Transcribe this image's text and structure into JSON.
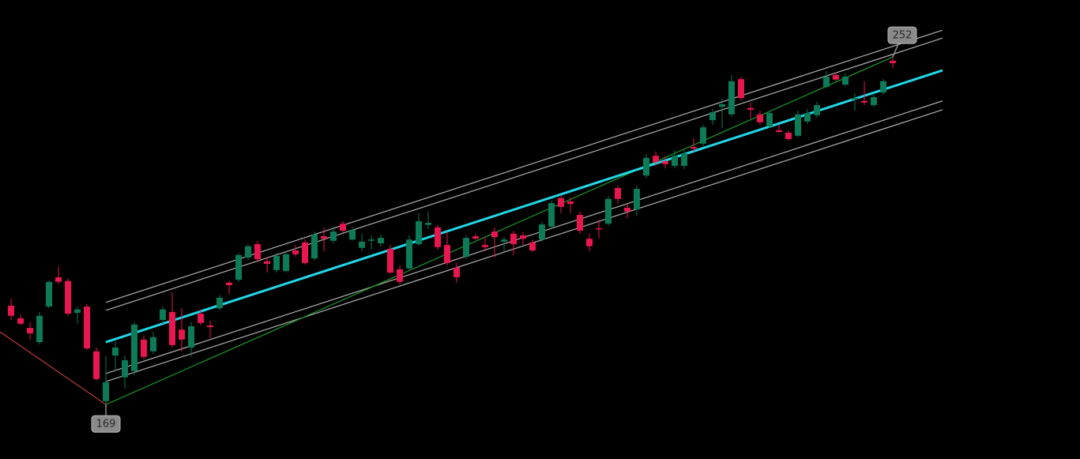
{
  "chart_data": {
    "type": "candlestick",
    "xlim": [
      -1.17,
      112.75
    ],
    "ylim": [
      156.0,
      265.6
    ],
    "up_color": "#0d7a58",
    "down_color": "#e8174f",
    "open": [
      192.6,
      189.6,
      187.3,
      183.9,
      192.4,
      199.4,
      198.5,
      190.9,
      192.4,
      181.7,
      169.8,
      180.7,
      175.5,
      177.0,
      184.5,
      181.7,
      189.2,
      191.1,
      186.9,
      182.6,
      190.7,
      187.9,
      192.0,
      198.1,
      198.8,
      204.1,
      207.3,
      203.2,
      201.1,
      200.9,
      205.8,
      207.7,
      203.9,
      209.2,
      208.1,
      212.2,
      208.4,
      206.4,
      208.1,
      207.5,
      206.2,
      201.3,
      201.5,
      207.3,
      211.9,
      211.3,
      207.1,
      201.7,
      204.3,
      209.2,
      207.1,
      210.3,
      207.9,
      209.8,
      209.4,
      207.7,
      208.4,
      211.5,
      218.3,
      217.5,
      214.3,
      208.6,
      211.1,
      212.2,
      220.7,
      216.0,
      215.6,
      223.7,
      228.4,
      227.1,
      226.0,
      226.0,
      230.5,
      231.3,
      236.9,
      240.1,
      238.3,
      246.7,
      239.8,
      238.3,
      235.4,
      234.5,
      233.9,
      233.2,
      236.6,
      238.1,
      244.9,
      247.7,
      245.4,
      241.8,
      241.5,
      240.5,
      243.5,
      251.1
    ],
    "high": [
      194.3,
      190.5,
      188.7,
      191.1,
      198.6,
      202.0,
      199.2,
      192.4,
      193.0,
      182.6,
      180.7,
      184.1,
      180.7,
      188.7,
      185.4,
      186.4,
      192.4,
      195.8,
      192.0,
      188.7,
      191.7,
      189.0,
      195.2,
      198.5,
      205.2,
      207.3,
      208.1,
      204.3,
      205.2,
      205.6,
      207.1,
      208.4,
      210.3,
      211.3,
      211.5,
      212.8,
      211.3,
      209.8,
      209.4,
      209.6,
      207.1,
      202.2,
      209.4,
      214.7,
      215.1,
      211.9,
      210.3,
      202.8,
      209.4,
      209.8,
      209.0,
      211.3,
      209.0,
      210.5,
      210.2,
      208.4,
      212.6,
      217.7,
      219.0,
      218.4,
      215.1,
      209.8,
      213.2,
      218.8,
      221.3,
      216.9,
      221.3,
      228.8,
      229.4,
      228.3,
      229.8,
      229.8,
      232.6,
      235.8,
      239.6,
      242.0,
      247.7,
      247.3,
      241.1,
      239.2,
      239.2,
      235.8,
      234.5,
      239.2,
      239.6,
      241.3,
      248.6,
      248.3,
      248.1,
      243.3,
      246.2,
      243.0,
      246.7,
      252.0
    ],
    "low": [
      189.2,
      187.9,
      184.5,
      183.4,
      192.0,
      197.7,
      190.2,
      188.3,
      182.0,
      174.7,
      169.0,
      177.0,
      172.8,
      176.0,
      179.8,
      181.1,
      188.3,
      182.6,
      181.7,
      180.4,
      187.9,
      184.9,
      191.5,
      195.4,
      198.3,
      203.4,
      203.0,
      200.5,
      200.5,
      200.5,
      204.3,
      202.4,
      203.4,
      205.6,
      207.5,
      210.0,
      208.1,
      205.6,
      206.0,
      206.8,
      200.2,
      197.7,
      201.1,
      206.9,
      210.9,
      206.0,
      202.2,
      198.1,
      203.7,
      208.3,
      205.6,
      204.1,
      205.6,
      204.7,
      207.1,
      205.4,
      207.9,
      210.9,
      214.7,
      214.7,
      209.8,
      205.6,
      208.6,
      211.7,
      216.9,
      213.5,
      214.1,
      223.0,
      226.0,
      225.4,
      225.4,
      225.2,
      229.4,
      230.7,
      235.8,
      235.0,
      237.7,
      241.6,
      237.3,
      235.8,
      235.0,
      233.9,
      232.0,
      232.8,
      236.0,
      237.5,
      244.5,
      246.2,
      245.0,
      239.2,
      240.5,
      240.0,
      243.0,
      249.4
    ],
    "close": [
      190.2,
      188.3,
      186.0,
      190.2,
      198.3,
      198.3,
      190.7,
      191.7,
      182.4,
      175.1,
      174.3,
      182.6,
      179.6,
      188.1,
      180.4,
      185.1,
      191.7,
      183.2,
      184.5,
      187.7,
      188.5,
      187.5,
      194.5,
      197.5,
      204.7,
      206.8,
      203.7,
      202.6,
      204.5,
      204.9,
      204.9,
      202.8,
      209.6,
      208.6,
      210.3,
      210.5,
      210.7,
      207.9,
      208.4,
      208.8,
      200.5,
      198.3,
      208.4,
      212.8,
      212.4,
      206.6,
      202.8,
      199.4,
      208.8,
      208.6,
      206.6,
      209.0,
      208.4,
      207.3,
      208.6,
      205.8,
      212.0,
      217.1,
      216.2,
      216.9,
      210.5,
      206.8,
      210.9,
      218.1,
      218.1,
      215.1,
      220.5,
      227.9,
      226.9,
      226.4,
      228.4,
      229.0,
      230.1,
      235.2,
      238.8,
      240.7,
      246.2,
      242.2,
      239.4,
      236.4,
      238.6,
      234.1,
      232.4,
      238.3,
      238.6,
      240.5,
      247.3,
      246.6,
      247.3,
      242.2,
      241.1,
      242.4,
      246.2,
      250.5
    ],
    "lines": [
      {
        "color": "#b0b0b0",
        "x": [
          10,
          98.25
        ],
        "values": [
          193.4,
          258.4
        ]
      },
      {
        "color": "#b0b0b0",
        "x": [
          10,
          98.25
        ],
        "values": [
          191.5,
          256.5
        ]
      },
      {
        "color": "#b0b0b0",
        "x": [
          10,
          98.25
        ],
        "values": [
          176.4,
          241.5
        ]
      },
      {
        "color": "#b0b0b0",
        "x": [
          10,
          98.25
        ],
        "values": [
          174.5,
          239.4
        ]
      },
      {
        "color": "#1a9a2a",
        "x": [
          10,
          93
        ],
        "values": [
          169.0,
          252.0
        ]
      },
      {
        "color": "#c03a3a",
        "x": [
          -1.2,
          10
        ],
        "values": [
          186.4,
          169.0
        ]
      },
      {
        "color": "#22d8e8",
        "x": [
          10,
          98.25
        ],
        "values": [
          183.9,
          248.8
        ]
      }
    ]
  }
}
